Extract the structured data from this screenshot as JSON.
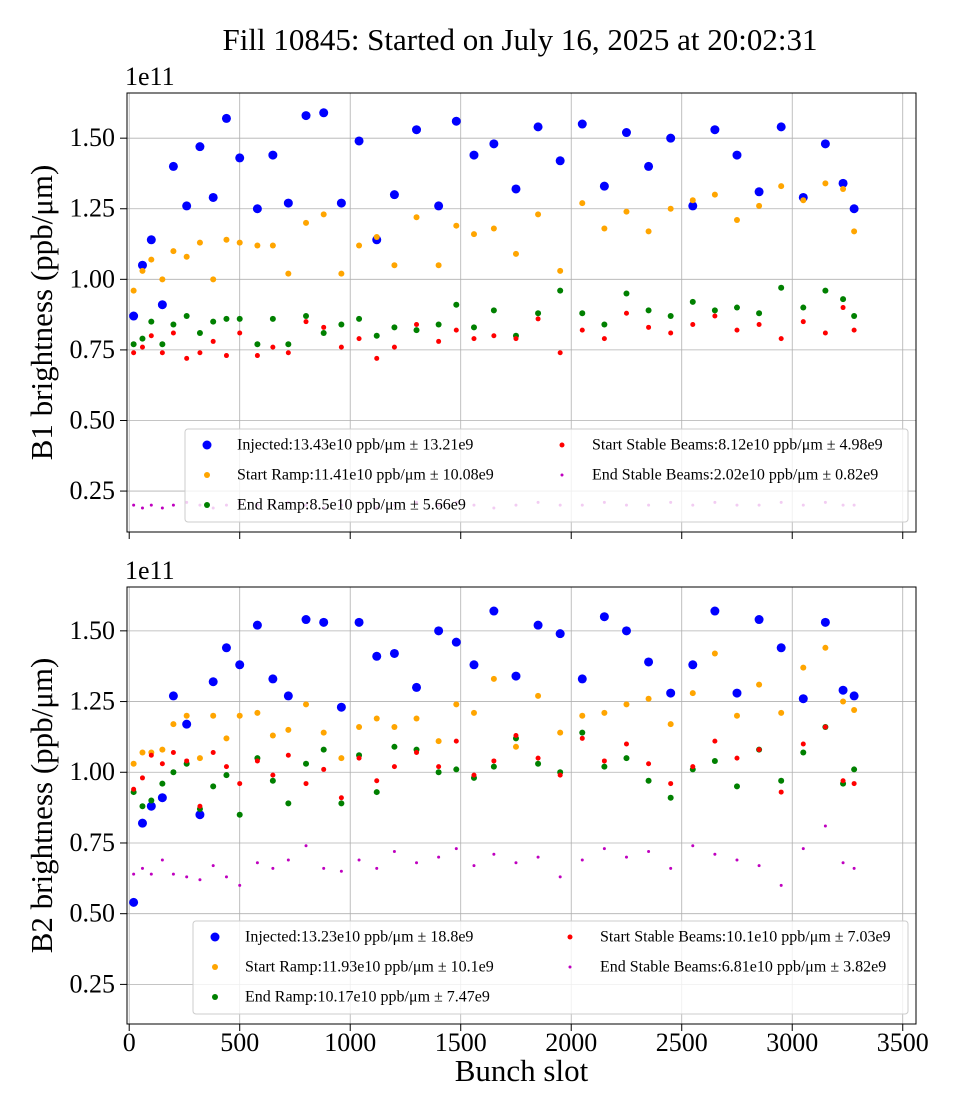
{
  "title": "Fill 10845: Started on July 16, 2025 at 20:02:31",
  "chart_data": [
    {
      "type": "scatter",
      "ylabel": "B1 brightness (ppb/μm)",
      "offset_text": "1e11",
      "xlim": [
        -10,
        3560
      ],
      "ylim": [
        0.105,
        1.66
      ],
      "xticks": [
        0,
        500,
        1000,
        1500,
        2000,
        2500,
        3000,
        3500
      ],
      "show_xtick_labels": false,
      "yticks": [
        0.25,
        {
          "value": 0.5,
          "label": "0.50"
        },
        0.75,
        {
          "value": 1.0,
          "label": "1.00"
        },
        1.25,
        {
          "value": 1.5,
          "label": "1.50"
        }
      ],
      "grid": true,
      "legend": "lower right",
      "x": [
        20,
        60,
        100,
        150,
        200,
        260,
        320,
        380,
        440,
        500,
        580,
        650,
        720,
        800,
        880,
        960,
        1040,
        1120,
        1200,
        1300,
        1400,
        1480,
        1560,
        1650,
        1750,
        1850,
        1950,
        2050,
        2150,
        2250,
        2350,
        2450,
        2550,
        2650,
        2750,
        2850,
        2950,
        3050,
        3150,
        3230,
        3280
      ],
      "series": [
        {
          "name": "Injected:13.43e10 ppb/μm ± 13.21e9",
          "color": "#0000ff",
          "marker_size": 4.5,
          "values": [
            0.87,
            1.05,
            1.14,
            0.91,
            1.4,
            1.26,
            1.47,
            1.29,
            1.57,
            1.43,
            1.25,
            1.44,
            1.27,
            1.58,
            1.59,
            1.27,
            1.49,
            1.14,
            1.3,
            1.53,
            1.26,
            1.56,
            1.44,
            1.48,
            1.32,
            1.54,
            1.42,
            1.55,
            1.33,
            1.52,
            1.4,
            1.5,
            1.26,
            1.53,
            1.44,
            1.31,
            1.54,
            1.29,
            1.48,
            1.34,
            1.25
          ]
        },
        {
          "name": "Start Ramp:11.41e10 ppb/μm ± 10.08e9",
          "color": "#ffa500",
          "marker_size": 3,
          "values": [
            0.96,
            1.03,
            1.07,
            1.0,
            1.1,
            1.08,
            1.13,
            1.0,
            1.14,
            1.13,
            1.12,
            1.12,
            1.02,
            1.2,
            1.23,
            1.02,
            1.12,
            1.15,
            1.05,
            1.22,
            1.05,
            1.19,
            1.16,
            1.18,
            1.09,
            1.23,
            1.03,
            1.27,
            1.18,
            1.24,
            1.17,
            1.25,
            1.28,
            1.3,
            1.21,
            1.26,
            1.33,
            1.28,
            1.34,
            1.32,
            1.17
          ]
        },
        {
          "name": "End Ramp:8.5e10 ppb/μm ± 5.66e9",
          "color": "#008000",
          "marker_size": 3,
          "values": [
            0.77,
            0.79,
            0.85,
            0.77,
            0.84,
            0.87,
            0.81,
            0.85,
            0.86,
            0.86,
            0.77,
            0.86,
            0.77,
            0.87,
            0.81,
            0.84,
            0.86,
            0.8,
            0.83,
            0.82,
            0.84,
            0.91,
            0.83,
            0.89,
            0.8,
            0.88,
            0.96,
            0.88,
            0.84,
            0.95,
            0.89,
            0.87,
            0.92,
            0.89,
            0.9,
            0.88,
            0.97,
            0.9,
            0.96,
            0.93,
            0.87
          ]
        },
        {
          "name": "Start Stable Beams:8.12e10 ppb/μm ± 4.98e9",
          "color": "#ff0000",
          "marker_size": 2.5,
          "values": [
            0.74,
            0.76,
            0.8,
            0.74,
            0.81,
            0.72,
            0.74,
            0.78,
            0.73,
            0.81,
            0.73,
            0.76,
            0.74,
            0.85,
            0.83,
            0.76,
            0.79,
            0.72,
            0.76,
            0.84,
            0.78,
            0.82,
            0.79,
            0.8,
            0.79,
            0.86,
            0.74,
            0.82,
            0.79,
            0.88,
            0.83,
            0.81,
            0.84,
            0.87,
            0.82,
            0.84,
            0.79,
            0.85,
            0.81,
            0.9,
            0.82
          ]
        },
        {
          "name": "End Stable Beams:2.02e10 ppb/μm ± 0.82e9",
          "color": "#bf00bf",
          "marker_size": 1.5,
          "values": [
            0.2,
            0.19,
            0.2,
            0.19,
            0.2,
            0.21,
            0.2,
            0.19,
            0.2,
            0.21,
            0.2,
            0.2,
            0.21,
            0.2,
            0.19,
            0.2,
            0.21,
            0.19,
            0.2,
            0.21,
            0.2,
            0.21,
            0.2,
            0.19,
            0.2,
            0.21,
            0.2,
            0.2,
            0.21,
            0.2,
            0.2,
            0.21,
            0.2,
            0.21,
            0.2,
            0.2,
            0.21,
            0.2,
            0.21,
            0.2,
            0.2
          ]
        }
      ]
    },
    {
      "type": "scatter",
      "ylabel": "B2 brightness (ppb/μm)",
      "xlabel": "Bunch slot",
      "offset_text": "1e11",
      "xlim": [
        -10,
        3560
      ],
      "ylim": [
        0.11,
        1.655
      ],
      "xticks": [
        0,
        500,
        1000,
        1500,
        2000,
        2500,
        3000,
        3500
      ],
      "show_xtick_labels": true,
      "yticks": [
        0.25,
        {
          "value": 0.5,
          "label": "0.50"
        },
        0.75,
        {
          "value": 1.0,
          "label": "1.00"
        },
        1.25,
        {
          "value": 1.5,
          "label": "1.50"
        }
      ],
      "grid": true,
      "legend": "lower right",
      "x": [
        20,
        60,
        100,
        150,
        200,
        260,
        320,
        380,
        440,
        500,
        580,
        650,
        720,
        800,
        880,
        960,
        1040,
        1120,
        1200,
        1300,
        1400,
        1480,
        1560,
        1650,
        1750,
        1850,
        1950,
        2050,
        2150,
        2250,
        2350,
        2450,
        2550,
        2650,
        2750,
        2850,
        2950,
        3050,
        3150,
        3230,
        3280
      ],
      "series": [
        {
          "name": "Injected:13.23e10 ppb/μm ± 18.8e9",
          "color": "#0000ff",
          "marker_size": 4.5,
          "values": [
            0.54,
            0.82,
            0.88,
            0.91,
            1.27,
            1.17,
            0.85,
            1.32,
            1.44,
            1.38,
            1.52,
            1.33,
            1.27,
            1.54,
            1.53,
            1.23,
            1.53,
            1.41,
            1.42,
            1.3,
            1.5,
            1.46,
            1.38,
            1.57,
            1.34,
            1.52,
            1.49,
            1.33,
            1.55,
            1.5,
            1.39,
            1.28,
            1.38,
            1.57,
            1.28,
            1.54,
            1.44,
            1.26,
            1.53,
            1.29,
            1.27
          ]
        },
        {
          "name": "Start Ramp:11.93e10 ppb/μm ± 10.1e9",
          "color": "#ffa500",
          "marker_size": 3,
          "values": [
            1.03,
            1.07,
            1.07,
            1.08,
            1.17,
            1.2,
            1.05,
            1.2,
            1.12,
            1.2,
            1.21,
            1.13,
            1.15,
            1.24,
            1.14,
            1.05,
            1.16,
            1.19,
            1.16,
            1.19,
            1.11,
            1.24,
            1.21,
            1.33,
            1.09,
            1.27,
            1.14,
            1.2,
            1.21,
            1.24,
            1.26,
            1.17,
            1.28,
            1.42,
            1.2,
            1.31,
            1.21,
            1.37,
            1.44,
            1.25,
            1.22
          ]
        },
        {
          "name": "End Ramp:10.17e10 ppb/μm ± 7.47e9",
          "color": "#008000",
          "marker_size": 3,
          "values": [
            0.93,
            0.88,
            0.9,
            0.96,
            1.0,
            1.03,
            0.87,
            0.95,
            0.99,
            0.85,
            1.05,
            0.97,
            0.89,
            1.03,
            1.08,
            0.89,
            1.06,
            0.93,
            1.09,
            1.08,
            1.0,
            1.01,
            0.98,
            1.02,
            1.12,
            1.03,
            1.0,
            1.14,
            1.02,
            1.05,
            0.97,
            0.91,
            1.01,
            1.04,
            0.95,
            1.08,
            0.97,
            1.07,
            1.16,
            0.96,
            1.01
          ]
        },
        {
          "name": "Start Stable Beams:10.1e10 ppb/μm ± 7.03e9",
          "color": "#ff0000",
          "marker_size": 2.5,
          "values": [
            0.94,
            0.98,
            1.06,
            1.03,
            1.07,
            1.04,
            0.88,
            1.07,
            1.02,
            0.96,
            1.04,
            0.99,
            1.06,
            0.96,
            1.01,
            0.91,
            1.05,
            0.97,
            1.02,
            1.07,
            1.02,
            1.11,
            0.99,
            1.04,
            1.13,
            1.05,
            0.99,
            1.12,
            1.04,
            1.1,
            1.03,
            0.96,
            1.02,
            1.11,
            1.05,
            1.08,
            0.93,
            1.1,
            1.16,
            0.97,
            0.96
          ]
        },
        {
          "name": "End Stable Beams:6.81e10 ppb/μm ± 3.82e9",
          "color": "#bf00bf",
          "marker_size": 1.5,
          "values": [
            0.64,
            0.66,
            0.64,
            0.69,
            0.64,
            0.63,
            0.62,
            0.67,
            0.63,
            0.6,
            0.68,
            0.66,
            0.69,
            0.74,
            0.66,
            0.65,
            0.69,
            0.66,
            0.72,
            0.68,
            0.7,
            0.73,
            0.67,
            0.71,
            0.68,
            0.7,
            0.63,
            0.69,
            0.73,
            0.7,
            0.72,
            0.66,
            0.74,
            0.71,
            0.69,
            0.67,
            0.6,
            0.73,
            0.81,
            0.68,
            0.66
          ]
        }
      ]
    }
  ]
}
